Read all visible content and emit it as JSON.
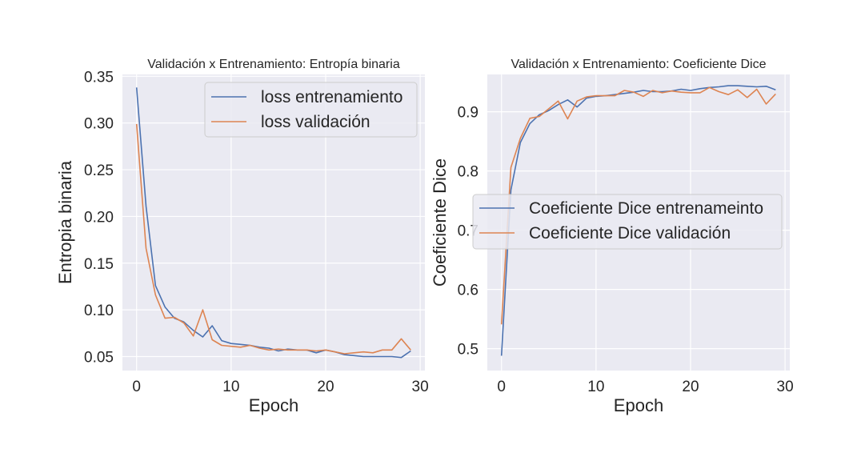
{
  "chart_data": [
    {
      "type": "line",
      "title": "Validación x Entrenamiento: Entropía binaria",
      "xlabel": "Epoch",
      "ylabel": "Entropia binaria",
      "xlim": [
        -1.5,
        30.5
      ],
      "ylim": [
        0.035,
        0.352
      ],
      "xticks": [
        0,
        10,
        20,
        30
      ],
      "xtick_labels": [
        "0",
        "10",
        "20",
        "30"
      ],
      "yticks": [
        0.05,
        0.1,
        0.15,
        0.2,
        0.25,
        0.3,
        0.35
      ],
      "ytick_labels": [
        "0.05",
        "0.10",
        "0.15",
        "0.20",
        "0.25",
        "0.30",
        "0.35"
      ],
      "grid": true,
      "legend_position": "upper right",
      "x": [
        0,
        1,
        2,
        3,
        4,
        5,
        6,
        7,
        8,
        9,
        10,
        11,
        12,
        13,
        14,
        15,
        16,
        17,
        18,
        19,
        20,
        21,
        22,
        23,
        24,
        25,
        26,
        27,
        28,
        29
      ],
      "series": [
        {
          "name": "loss entrenamiento",
          "color": "#4c72b0",
          "values": [
            0.338,
            0.211,
            0.126,
            0.103,
            0.091,
            0.087,
            0.078,
            0.071,
            0.083,
            0.067,
            0.064,
            0.063,
            0.062,
            0.06,
            0.059,
            0.056,
            0.058,
            0.057,
            0.057,
            0.054,
            0.057,
            0.055,
            0.052,
            0.051,
            0.05,
            0.05,
            0.05,
            0.05,
            0.049,
            0.056
          ]
        },
        {
          "name": "loss validación",
          "color": "#dd8452",
          "values": [
            0.299,
            0.166,
            0.116,
            0.091,
            0.092,
            0.086,
            0.072,
            0.1,
            0.068,
            0.062,
            0.061,
            0.06,
            0.062,
            0.059,
            0.057,
            0.058,
            0.057,
            0.057,
            0.057,
            0.056,
            0.057,
            0.055,
            0.053,
            0.054,
            0.055,
            0.054,
            0.057,
            0.057,
            0.069,
            0.057
          ]
        }
      ]
    },
    {
      "type": "line",
      "title": "Validación x Entrenamiento: Coeficiente Dice",
      "xlabel": "Epoch",
      "ylabel": "Coeficiente Dice",
      "xlim": [
        -1.5,
        30.5
      ],
      "ylim": [
        0.463,
        0.963
      ],
      "xticks": [
        0,
        10,
        20,
        30
      ],
      "xtick_labels": [
        "0",
        "10",
        "20",
        "30"
      ],
      "yticks": [
        0.5,
        0.6,
        0.7,
        0.8,
        0.9
      ],
      "ytick_labels": [
        "0.5",
        "0.6",
        "0.7",
        "0.8",
        "0.9"
      ],
      "grid": true,
      "legend_position": "center right",
      "x": [
        0,
        1,
        2,
        3,
        4,
        5,
        6,
        7,
        8,
        9,
        10,
        11,
        12,
        13,
        14,
        15,
        16,
        17,
        18,
        19,
        20,
        21,
        22,
        23,
        24,
        25,
        26,
        27,
        28,
        29
      ],
      "series": [
        {
          "name": "Coeficiente Dice entrenameinto",
          "color": "#4c72b0",
          "values": [
            0.488,
            0.768,
            0.848,
            0.88,
            0.895,
            0.902,
            0.912,
            0.92,
            0.908,
            0.923,
            0.926,
            0.927,
            0.929,
            0.931,
            0.933,
            0.936,
            0.934,
            0.934,
            0.935,
            0.938,
            0.936,
            0.939,
            0.941,
            0.942,
            0.944,
            0.944,
            0.943,
            0.942,
            0.943,
            0.937
          ]
        },
        {
          "name": "Coeficiente Dice validación",
          "color": "#dd8452",
          "values": [
            0.541,
            0.806,
            0.855,
            0.889,
            0.892,
            0.905,
            0.918,
            0.888,
            0.918,
            0.925,
            0.927,
            0.927,
            0.927,
            0.936,
            0.933,
            0.926,
            0.936,
            0.932,
            0.935,
            0.933,
            0.932,
            0.932,
            0.941,
            0.934,
            0.929,
            0.937,
            0.924,
            0.938,
            0.913,
            0.93
          ]
        }
      ]
    }
  ]
}
